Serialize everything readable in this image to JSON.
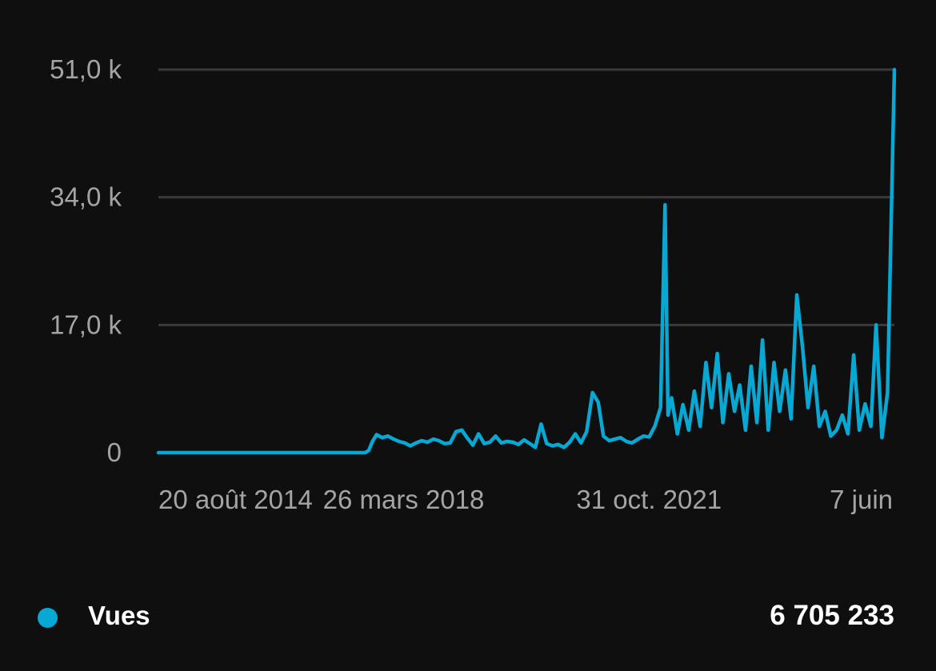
{
  "chart_data": {
    "type": "line",
    "y_tick_labels": [
      "0",
      "17,0 k",
      "34,0 k",
      "51,0 k"
    ],
    "y_tick_values": [
      0,
      17000,
      34000,
      51000
    ],
    "ylim": [
      0,
      51000
    ],
    "x_tick_labels": [
      "20 août 2014",
      "26 mars 2018",
      "31 oct. 2021",
      "7 juin"
    ],
    "x_tick_dates": [
      "2014-08-20",
      "2018-03-26",
      "2021-10-31",
      "2025-06-07"
    ],
    "xlim": [
      "2014-08-20",
      "2025-06-07"
    ],
    "grid": true,
    "legend_position": "bottom-left",
    "series": [
      {
        "name": "Vues",
        "color": "#06a9d4",
        "points": [
          [
            "2014-08-20",
            0
          ],
          [
            "2017-02-01",
            0
          ],
          [
            "2017-09-01",
            0
          ],
          [
            "2017-09-20",
            300
          ],
          [
            "2017-10-10",
            1500
          ],
          [
            "2017-11-01",
            2400
          ],
          [
            "2017-12-01",
            2000
          ],
          [
            "2018-01-01",
            2200
          ],
          [
            "2018-02-01",
            1800
          ],
          [
            "2018-03-01",
            1500
          ],
          [
            "2018-04-01",
            1300
          ],
          [
            "2018-05-01",
            900
          ],
          [
            "2018-06-01",
            1300
          ],
          [
            "2018-07-01",
            1600
          ],
          [
            "2018-08-01",
            1400
          ],
          [
            "2018-09-01",
            1800
          ],
          [
            "2018-10-01",
            1600
          ],
          [
            "2018-11-01",
            1200
          ],
          [
            "2018-12-01",
            1300
          ],
          [
            "2019-01-01",
            2800
          ],
          [
            "2019-02-01",
            3000
          ],
          [
            "2019-03-01",
            2000
          ],
          [
            "2019-04-01",
            1000
          ],
          [
            "2019-05-01",
            2500
          ],
          [
            "2019-06-01",
            1200
          ],
          [
            "2019-07-01",
            1400
          ],
          [
            "2019-08-01",
            2200
          ],
          [
            "2019-09-01",
            1300
          ],
          [
            "2019-10-01",
            1500
          ],
          [
            "2019-11-01",
            1400
          ],
          [
            "2019-12-01",
            1100
          ],
          [
            "2020-01-01",
            1700
          ],
          [
            "2020-02-01",
            1200
          ],
          [
            "2020-03-01",
            700
          ],
          [
            "2020-04-01",
            3800
          ],
          [
            "2020-05-01",
            1200
          ],
          [
            "2020-06-01",
            900
          ],
          [
            "2020-07-01",
            1100
          ],
          [
            "2020-08-01",
            700
          ],
          [
            "2020-09-01",
            1400
          ],
          [
            "2020-10-01",
            2500
          ],
          [
            "2020-11-01",
            1300
          ],
          [
            "2020-12-01",
            2800
          ],
          [
            "2021-01-01",
            8000
          ],
          [
            "2021-02-01",
            6700
          ],
          [
            "2021-03-01",
            2200
          ],
          [
            "2021-04-01",
            1600
          ],
          [
            "2021-05-01",
            1800
          ],
          [
            "2021-06-01",
            2000
          ],
          [
            "2021-07-01",
            1500
          ],
          [
            "2021-08-01",
            1300
          ],
          [
            "2021-09-01",
            1800
          ],
          [
            "2021-10-01",
            2200
          ],
          [
            "2021-11-01",
            2100
          ],
          [
            "2021-12-01",
            3500
          ],
          [
            "2022-01-01",
            6000
          ],
          [
            "2022-01-25",
            33000
          ],
          [
            "2022-02-10",
            5000
          ],
          [
            "2022-03-01",
            7300
          ],
          [
            "2022-04-01",
            2500
          ],
          [
            "2022-05-01",
            6400
          ],
          [
            "2022-06-01",
            3000
          ],
          [
            "2022-07-01",
            8200
          ],
          [
            "2022-08-01",
            3500
          ],
          [
            "2022-09-01",
            12000
          ],
          [
            "2022-10-01",
            6000
          ],
          [
            "2022-11-01",
            13200
          ],
          [
            "2022-12-01",
            4000
          ],
          [
            "2023-01-01",
            10500
          ],
          [
            "2023-02-01",
            5500
          ],
          [
            "2023-03-01",
            9000
          ],
          [
            "2023-04-01",
            3000
          ],
          [
            "2023-05-01",
            11500
          ],
          [
            "2023-06-01",
            4000
          ],
          [
            "2023-07-01",
            15000
          ],
          [
            "2023-08-01",
            3000
          ],
          [
            "2023-09-01",
            12000
          ],
          [
            "2023-10-01",
            5500
          ],
          [
            "2023-11-01",
            11000
          ],
          [
            "2023-12-01",
            4500
          ],
          [
            "2024-01-01",
            21000
          ],
          [
            "2024-02-01",
            14000
          ],
          [
            "2024-03-01",
            6000
          ],
          [
            "2024-04-01",
            11500
          ],
          [
            "2024-05-01",
            3500
          ],
          [
            "2024-06-01",
            5500
          ],
          [
            "2024-07-01",
            2200
          ],
          [
            "2024-08-01",
            3000
          ],
          [
            "2024-09-01",
            5000
          ],
          [
            "2024-10-01",
            2500
          ],
          [
            "2024-11-01",
            13000
          ],
          [
            "2024-12-01",
            3000
          ],
          [
            "2025-01-01",
            6500
          ],
          [
            "2025-02-01",
            3500
          ],
          [
            "2025-03-01",
            17000
          ],
          [
            "2025-04-01",
            2000
          ],
          [
            "2025-05-01",
            8000
          ],
          [
            "2025-06-07",
            51000
          ]
        ]
      }
    ]
  },
  "legend": {
    "label": "Vues",
    "total": "6 705 233",
    "dot_color": "#06a9d4"
  },
  "colors": {
    "background": "#0f0f10",
    "gridline": "#3a3a3c",
    "tick_text": "#a4a4a6",
    "line": "#06a9d4"
  }
}
